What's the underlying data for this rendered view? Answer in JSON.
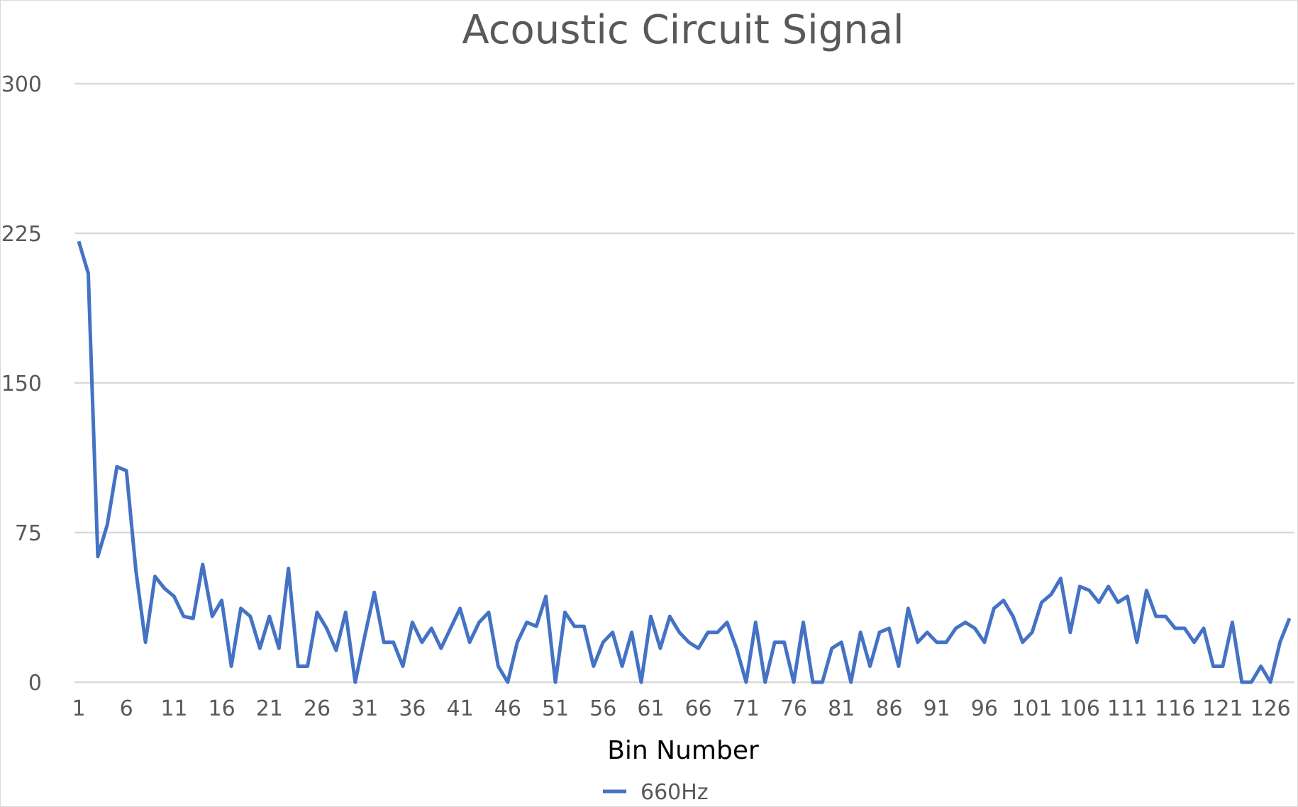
{
  "chart_data": {
    "type": "line",
    "title": "Acoustic Circuit Signal",
    "xlabel": "Bin Number",
    "ylabel": "",
    "ylim": [
      0,
      300
    ],
    "yticks": [
      "0",
      "75",
      "150",
      "225",
      "300"
    ],
    "x": [
      1,
      2,
      3,
      4,
      5,
      6,
      7,
      8,
      9,
      10,
      11,
      12,
      13,
      14,
      15,
      16,
      17,
      18,
      19,
      20,
      21,
      22,
      23,
      24,
      25,
      26,
      27,
      28,
      29,
      30,
      31,
      32,
      33,
      34,
      35,
      36,
      37,
      38,
      39,
      40,
      41,
      42,
      43,
      44,
      45,
      46,
      47,
      48,
      49,
      50,
      51,
      52,
      53,
      54,
      55,
      56,
      57,
      58,
      59,
      60,
      61,
      62,
      63,
      64,
      65,
      66,
      67,
      68,
      69,
      70,
      71,
      72,
      73,
      74,
      75,
      76,
      77,
      78,
      79,
      80,
      81,
      82,
      83,
      84,
      85,
      86,
      87,
      88,
      89,
      90,
      91,
      92,
      93,
      94,
      95,
      96,
      97,
      98,
      99,
      100,
      101,
      102,
      103,
      104,
      105,
      106,
      107,
      108,
      109,
      110,
      111,
      112,
      113,
      114,
      115,
      116,
      117,
      118,
      119,
      120,
      121,
      122,
      123,
      124,
      125,
      126,
      127,
      128
    ],
    "xtick_labels": [
      "1",
      "6",
      "11",
      "16",
      "21",
      "26",
      "31",
      "36",
      "41",
      "46",
      "51",
      "56",
      "61",
      "66",
      "71",
      "76",
      "81",
      "86",
      "91",
      "96",
      "101",
      "106",
      "111",
      "116",
      "121",
      "126"
    ],
    "grid": true,
    "legend_position": "bottom",
    "series": [
      {
        "name": "660Hz",
        "color": "#4472C4",
        "values": [
          221,
          205,
          63,
          79,
          108,
          106,
          56,
          20,
          53,
          47,
          43,
          33,
          32,
          59,
          33,
          41,
          8,
          37,
          33,
          17,
          33,
          17,
          57,
          8,
          8,
          35,
          27,
          16,
          35,
          0,
          23,
          45,
          20,
          20,
          8,
          30,
          20,
          27,
          17,
          27,
          37,
          20,
          30,
          35,
          8,
          0,
          20,
          30,
          28,
          43,
          0,
          35,
          28,
          28,
          8,
          20,
          25,
          8,
          25,
          0,
          33,
          17,
          33,
          25,
          20,
          17,
          25,
          25,
          30,
          17,
          0,
          30,
          0,
          20,
          20,
          0,
          30,
          0,
          0,
          17,
          20,
          0,
          25,
          8,
          25,
          27,
          8,
          37,
          20,
          25,
          20,
          20,
          27,
          30,
          27,
          20,
          37,
          41,
          33,
          20,
          25,
          40,
          44,
          52,
          25,
          48,
          46,
          40,
          48,
          40,
          43,
          20,
          46,
          33,
          33,
          27,
          27,
          20,
          27,
          8,
          8,
          30,
          0,
          0,
          8,
          0,
          20,
          32
        ]
      }
    ]
  }
}
